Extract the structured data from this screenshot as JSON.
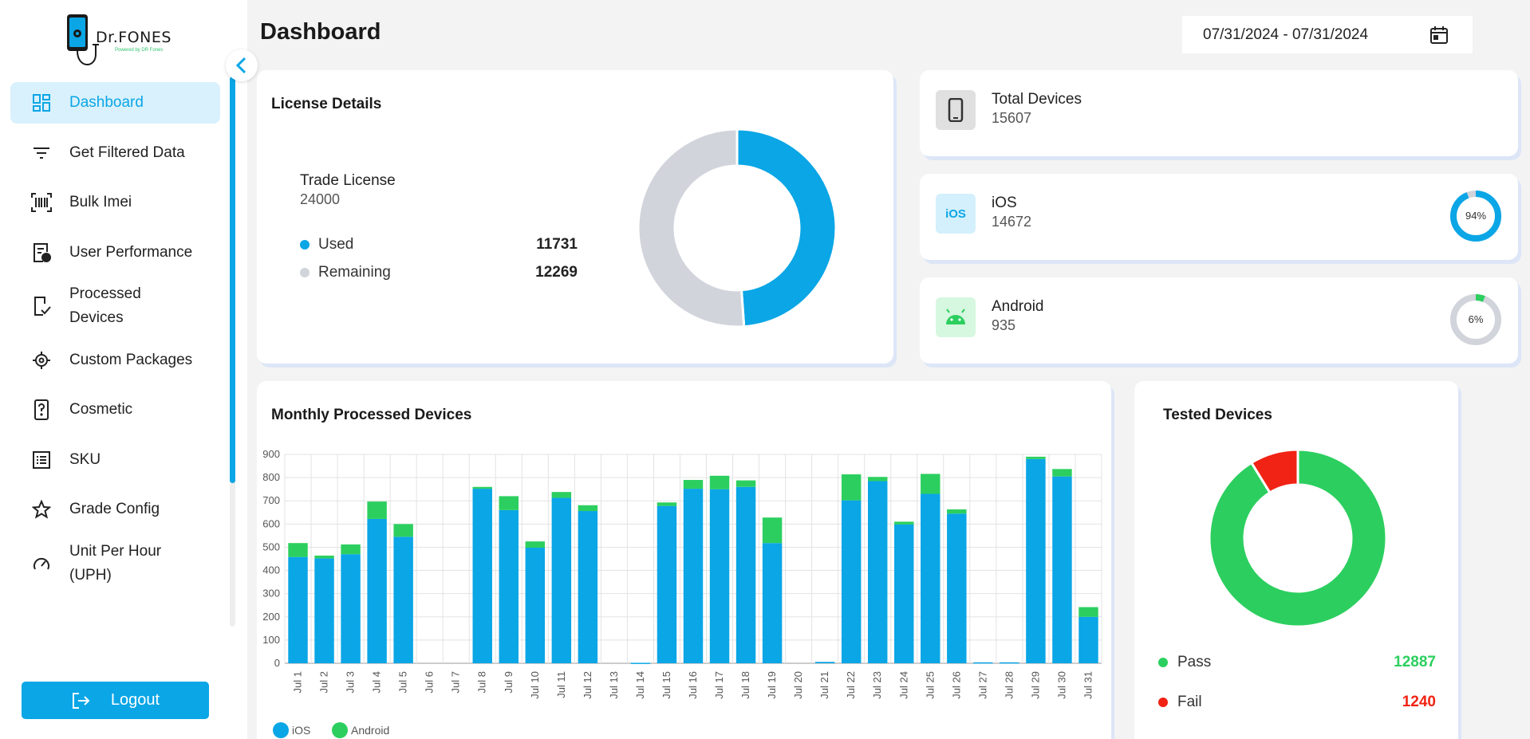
{
  "sidebar": {
    "logo_text": "Dr.FONES",
    "logo_sub": "Powered by DR Fones",
    "items": [
      {
        "label": "Dashboard",
        "icon": "dashboard-icon",
        "active": true
      },
      {
        "label": "Get Filtered Data",
        "icon": "filter-icon"
      },
      {
        "label": "Bulk Imei",
        "icon": "barcode-icon"
      },
      {
        "label": "User Performance",
        "icon": "user-report-icon"
      },
      {
        "label": "Processed Devices",
        "icon": "device-check-icon"
      },
      {
        "label": "Custom Packages",
        "icon": "package-gear-icon"
      },
      {
        "label": "Cosmetic",
        "icon": "phone-question-icon"
      },
      {
        "label": "SKU",
        "icon": "list-icon"
      },
      {
        "label": "Grade Config",
        "icon": "star-icon"
      },
      {
        "label": "Unit Per Hour (UPH)",
        "icon": "speedometer-icon"
      }
    ],
    "logout_label": "Logout"
  },
  "header": {
    "title": "Dashboard",
    "date_range": "07/31/2024 - 07/31/2024"
  },
  "license": {
    "title": "License Details",
    "name": "Trade License",
    "total": "24000",
    "used_label": "Used",
    "used_value": "11731",
    "remaining_label": "Remaining",
    "remaining_value": "12269",
    "colors": {
      "used": "#0aa6e6",
      "remaining": "#d1d4db"
    }
  },
  "stats": {
    "total": {
      "label": "Total Devices",
      "value": "15607"
    },
    "ios": {
      "label": "iOS",
      "value": "14672",
      "percent_label": "94%",
      "percent": 94,
      "icon_text": "iOS"
    },
    "android": {
      "label": "Android",
      "value": "935",
      "percent_label": "6%",
      "percent": 6
    }
  },
  "monthly": {
    "title": "Monthly Processed Devices"
  },
  "tested": {
    "title": "Tested Devices",
    "pass_label": "Pass",
    "pass_value": "12887",
    "fail_label": "Fail",
    "fail_value": "1240",
    "colors": {
      "pass": "#2ccf5f",
      "fail": "#f02314"
    }
  },
  "chart_data": {
    "type": "bar",
    "stacked": true,
    "categories": [
      "Jul 1",
      "Jul 2",
      "Jul 3",
      "Jul 4",
      "Jul 5",
      "Jul 6",
      "Jul 7",
      "Jul 8",
      "Jul 9",
      "Jul 10",
      "Jul 11",
      "Jul 12",
      "Jul 13",
      "Jul 14",
      "Jul 15",
      "Jul 16",
      "Jul 17",
      "Jul 18",
      "Jul 19",
      "Jul 20",
      "Jul 21",
      "Jul 22",
      "Jul 23",
      "Jul 24",
      "Jul 25",
      "Jul 26",
      "Jul 27",
      "Jul 28",
      "Jul 29",
      "Jul 30",
      "Jul 31"
    ],
    "series": [
      {
        "name": "iOS",
        "color": "#0aa6e6",
        "values": [
          458,
          452,
          470,
          622,
          545,
          0,
          0,
          752,
          660,
          498,
          713,
          656,
          0,
          2,
          678,
          752,
          750,
          760,
          518,
          0,
          6,
          702,
          785,
          598,
          730,
          645,
          4,
          4,
          880,
          805,
          200
        ]
      },
      {
        "name": "Android",
        "color": "#2ccf5f",
        "values": [
          60,
          12,
          42,
          75,
          55,
          0,
          0,
          8,
          60,
          27,
          25,
          25,
          0,
          0,
          15,
          38,
          58,
          28,
          110,
          0,
          0,
          112,
          18,
          12,
          86,
          18,
          0,
          0,
          10,
          32,
          42
        ]
      }
    ],
    "yticks": [
      0,
      100,
      200,
      300,
      400,
      500,
      600,
      700,
      800,
      900
    ],
    "ylim": [
      0,
      900
    ],
    "legend": "bottom-left",
    "grid": true
  }
}
